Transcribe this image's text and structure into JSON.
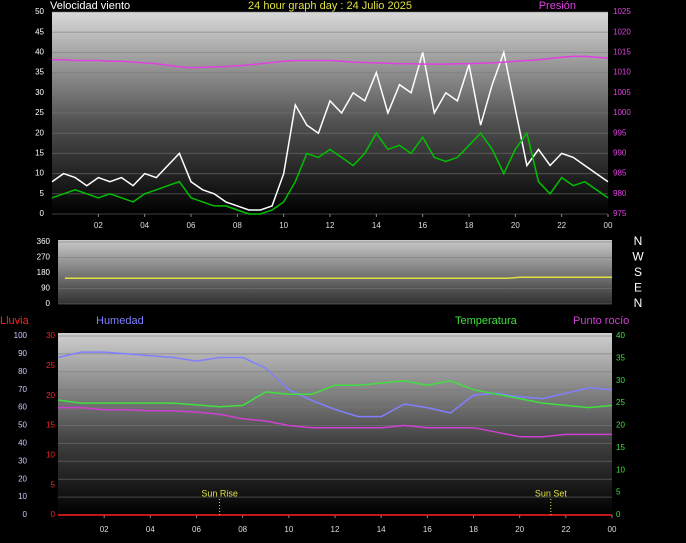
{
  "chart_data": [
    {
      "type": "line",
      "title": "24 hour graph day : 24 Julio 2025",
      "ylabel": "Velocidad viento",
      "y2label": "Presión",
      "x": [
        0,
        0.5,
        1,
        1.5,
        2,
        2.5,
        3,
        3.5,
        4,
        4.5,
        5,
        5.5,
        6,
        6.5,
        7,
        7.5,
        8,
        8.5,
        9,
        9.5,
        10,
        10.5,
        11,
        11.5,
        12,
        12.5,
        13,
        13.5,
        14,
        14.5,
        15,
        15.5,
        16,
        16.5,
        17,
        17.5,
        18,
        18.5,
        19,
        19.5,
        20,
        20.5,
        21,
        21.5,
        22,
        22.5,
        23,
        23.5,
        24
      ],
      "series": [
        {
          "color": "#ffffff",
          "values": [
            8,
            10,
            9,
            7,
            9,
            8,
            9,
            7,
            10,
            9,
            12,
            15,
            8,
            6,
            5,
            3,
            2,
            1,
            1,
            2,
            10,
            27,
            22,
            20,
            28,
            25,
            30,
            28,
            35,
            25,
            32,
            30,
            40,
            25,
            30,
            28,
            37,
            22,
            32,
            40,
            26,
            12,
            16,
            12,
            15,
            14,
            12,
            10,
            8
          ]
        },
        {
          "color": "#00c000",
          "values": [
            4,
            5,
            6,
            5,
            4,
            5,
            4,
            3,
            5,
            6,
            7,
            8,
            4,
            3,
            2,
            2,
            1,
            0,
            0,
            1,
            3,
            8,
            15,
            14,
            16,
            14,
            12,
            15,
            20,
            16,
            17,
            15,
            19,
            14,
            13,
            14,
            17,
            20,
            16,
            10,
            16,
            20,
            8,
            5,
            9,
            7,
            8,
            6,
            4
          ]
        },
        {
          "color": "#e040e0",
          "axis": "y2",
          "values": [
            1013.2,
            1013.2,
            1013,
            1013,
            1013,
            1012.8,
            1012.8,
            1012.6,
            1012.4,
            1012.2,
            1011.8,
            1011.4,
            1011.2,
            1011.3,
            1011.4,
            1011.5,
            1011.7,
            1011.9,
            1012.2,
            1012.5,
            1012.8,
            1013,
            1013,
            1013,
            1013,
            1012.8,
            1012.6,
            1012.5,
            1012.4,
            1012.3,
            1012.2,
            1012.2,
            1012.1,
            1012.1,
            1012.1,
            1012.2,
            1012.2,
            1012.3,
            1012.4,
            1012.6,
            1012.8,
            1013,
            1013.2,
            1013.5,
            1013.8,
            1014,
            1014,
            1013.8,
            1013.6
          ]
        }
      ],
      "xlim": [
        0,
        24
      ],
      "xticks": [
        {
          "value": 2,
          "label": "02"
        },
        {
          "value": 4,
          "label": "04"
        },
        {
          "value": 6,
          "label": "06"
        },
        {
          "value": 8,
          "label": "08"
        },
        10,
        12,
        14,
        16,
        18,
        20,
        22,
        {
          "value": 24,
          "label": "00"
        }
      ],
      "ylim": [
        0,
        50
      ],
      "yticks": [
        0,
        5,
        10,
        15,
        20,
        25,
        30,
        35,
        40,
        45,
        50
      ],
      "y2lim": [
        975,
        1025
      ],
      "y2ticks": [
        975,
        980,
        985,
        990,
        995,
        1000,
        1005,
        1010,
        1015,
        1020,
        1025
      ],
      "grid": true
    },
    {
      "type": "line",
      "x": [
        0.3,
        19.5,
        20,
        24
      ],
      "series": [
        {
          "color": "#e0e040",
          "values": [
            150,
            150,
            155,
            155
          ]
        }
      ],
      "xlim": [
        0,
        24
      ],
      "ylim": [
        0,
        360
      ],
      "yticks": [
        0,
        90,
        180,
        270,
        360
      ],
      "y2lim": [
        0,
        360
      ],
      "y2ticks": [
        {
          "value": 360,
          "label": "N"
        },
        {
          "value": 270,
          "label": "W"
        },
        {
          "value": 180,
          "label": "S"
        },
        {
          "value": 90,
          "label": "E"
        },
        {
          "value": 0,
          "label": "N"
        }
      ],
      "grid": true
    },
    {
      "type": "line",
      "x": [
        0,
        1,
        2,
        3,
        4,
        5,
        6,
        7,
        8,
        9,
        10,
        11,
        12,
        13,
        14,
        15,
        16,
        17,
        18,
        19,
        20,
        21,
        22,
        23,
        24
      ],
      "series": [
        {
          "name": "Lluvia",
          "color": "#ff2020",
          "axis": "y3",
          "values": [
            0,
            0,
            0,
            0,
            0,
            0,
            0,
            0,
            0,
            0,
            0,
            0,
            0,
            0,
            0,
            0,
            0,
            0,
            0,
            0,
            0,
            0,
            0,
            0,
            0
          ]
        },
        {
          "name": "Humedad",
          "color": "#8080ff",
          "values": [
            88,
            91,
            91,
            90,
            89,
            88,
            86,
            88,
            88,
            82,
            70,
            64,
            59,
            55,
            55,
            62,
            60,
            57,
            67,
            68,
            66,
            65,
            68,
            71,
            70
          ]
        },
        {
          "name": "Temperatura",
          "color": "#40e040",
          "axis": "y2",
          "values": [
            25.7,
            25,
            25,
            25,
            25,
            25,
            24.6,
            24.2,
            24.5,
            27.5,
            27,
            27,
            29,
            29,
            29.5,
            30,
            29,
            30,
            28,
            27,
            26,
            25,
            24.5,
            24,
            24.5
          ]
        },
        {
          "name": "Punto rocío",
          "color": "#d040d0",
          "axis": "y2",
          "values": [
            24,
            24,
            23.5,
            23.5,
            23.3,
            23.3,
            23,
            22.5,
            21.5,
            21,
            20,
            19.5,
            19.5,
            19.5,
            19.5,
            20,
            19.5,
            19.5,
            19.5,
            18.5,
            17.5,
            17.5,
            18,
            18,
            18
          ]
        }
      ],
      "xlim": [
        0,
        24
      ],
      "xticks": [
        {
          "value": 2,
          "label": "02"
        },
        {
          "value": 4,
          "label": "04"
        },
        {
          "value": 6,
          "label": "06"
        },
        {
          "value": 8,
          "label": "08"
        },
        10,
        12,
        14,
        16,
        18,
        20,
        22,
        {
          "value": 24,
          "label": "00"
        }
      ],
      "ylim": [
        0,
        100
      ],
      "yticks": [
        0,
        10,
        20,
        30,
        40,
        50,
        60,
        70,
        80,
        90,
        100
      ],
      "y2lim": [
        0,
        40
      ],
      "y2ticks": [
        0,
        5,
        10,
        15,
        20,
        25,
        30,
        35,
        40
      ],
      "y3lim": [
        0,
        30
      ],
      "y3ticks": [
        0,
        5,
        10,
        15,
        20,
        25,
        30
      ],
      "annotations": [
        {
          "text": "Sun Rise",
          "x": 7.0
        },
        {
          "text": "Sun Set",
          "x": 21.35
        }
      ],
      "grid": true
    }
  ]
}
